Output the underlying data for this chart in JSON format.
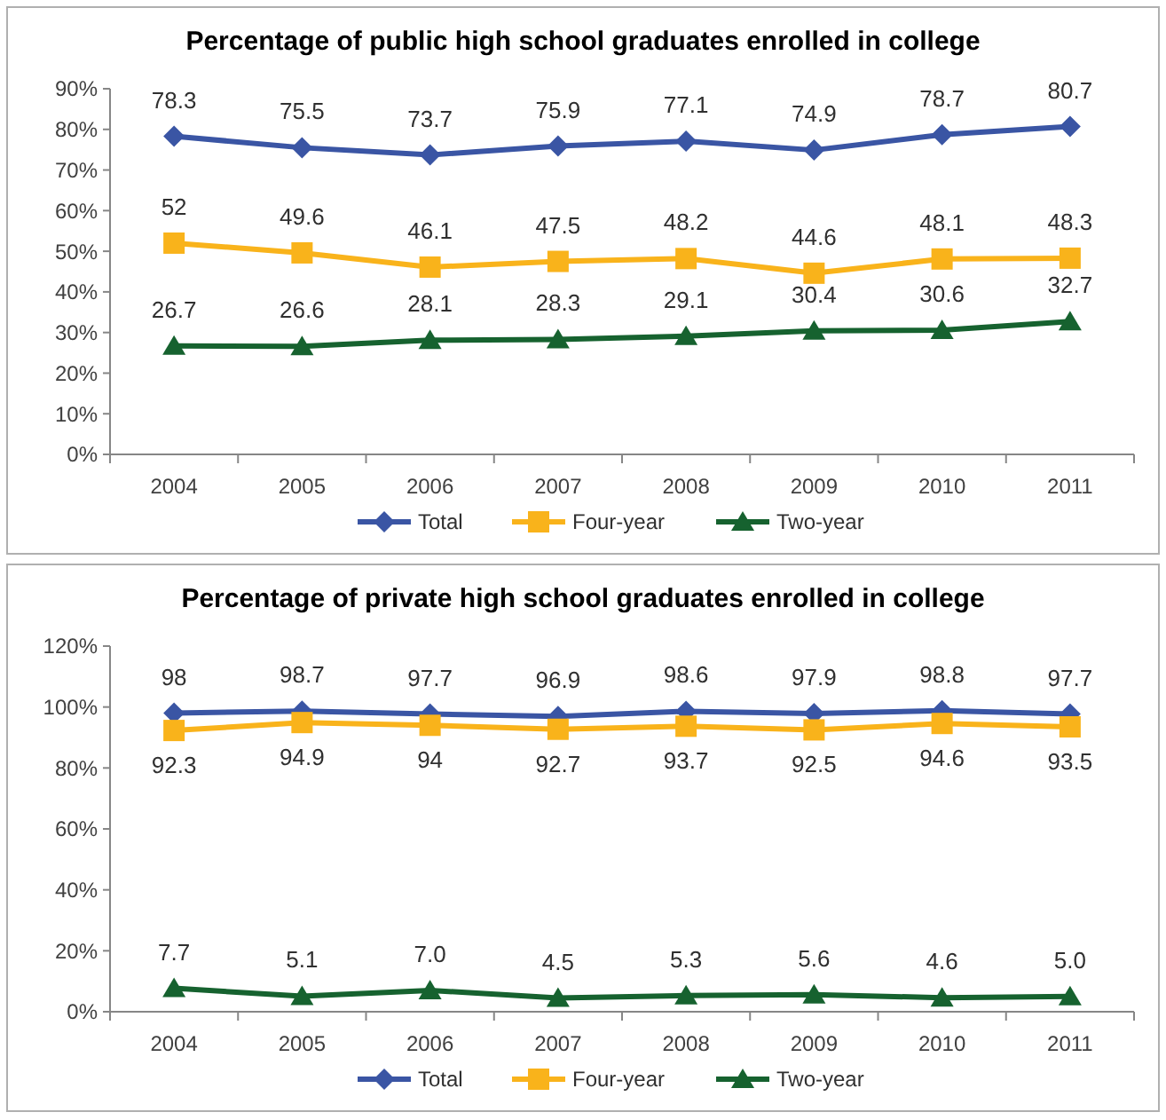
{
  "chart_data": [
    {
      "type": "line",
      "title": "Percentage of public high school graduates enrolled in college",
      "categories": [
        "2004",
        "2005",
        "2006",
        "2007",
        "2008",
        "2009",
        "2010",
        "2011"
      ],
      "ylim": [
        0,
        90
      ],
      "yticks": [
        {
          "value": 0,
          "label": "0%"
        },
        {
          "value": 10,
          "label": "10%"
        },
        {
          "value": 20,
          "label": "20%"
        },
        {
          "value": 30,
          "label": "30%"
        },
        {
          "value": 40,
          "label": "40%"
        },
        {
          "value": 50,
          "label": "50%"
        },
        {
          "value": 60,
          "label": "60%"
        },
        {
          "value": 70,
          "label": "70%"
        },
        {
          "value": 80,
          "label": "80%"
        },
        {
          "value": 90,
          "label": "90%"
        }
      ],
      "grid": false,
      "legend": "bottom",
      "series": [
        {
          "name": "Total",
          "color": "#3a55a4",
          "marker": "diamond",
          "values": [
            78.3,
            75.5,
            73.7,
            75.9,
            77.1,
            74.9,
            78.7,
            80.7
          ],
          "value_labels": [
            "78.3",
            "75.5",
            "73.7",
            "75.9",
            "77.1",
            "74.9",
            "78.7",
            "80.7"
          ]
        },
        {
          "name": "Four-year",
          "color": "#f9b31b",
          "marker": "square",
          "values": [
            52,
            49.6,
            46.1,
            47.5,
            48.2,
            44.6,
            48.1,
            48.3
          ],
          "value_labels": [
            "52",
            "49.6",
            "46.1",
            "47.5",
            "48.2",
            "44.6",
            "48.1",
            "48.3"
          ]
        },
        {
          "name": "Two-year",
          "color": "#16622f",
          "marker": "triangle",
          "values": [
            26.7,
            26.6,
            28.1,
            28.3,
            29.1,
            30.4,
            30.6,
            32.7
          ],
          "value_labels": [
            "26.7",
            "26.6",
            "28.1",
            "28.3",
            "29.1",
            "30.4",
            "30.6",
            "32.7"
          ]
        }
      ]
    },
    {
      "type": "line",
      "title": "Percentage of private high school graduates enrolled in college",
      "categories": [
        "2004",
        "2005",
        "2006",
        "2007",
        "2008",
        "2009",
        "2010",
        "2011"
      ],
      "ylim": [
        0,
        120
      ],
      "yticks": [
        {
          "value": 0,
          "label": "0%"
        },
        {
          "value": 20,
          "label": "20%"
        },
        {
          "value": 40,
          "label": "40%"
        },
        {
          "value": 60,
          "label": "60%"
        },
        {
          "value": 80,
          "label": "80%"
        },
        {
          "value": 100,
          "label": "100%"
        },
        {
          "value": 120,
          "label": "120%"
        }
      ],
      "grid": false,
      "legend": "bottom",
      "series": [
        {
          "name": "Total",
          "color": "#3a55a4",
          "marker": "diamond",
          "values": [
            98,
            98.7,
            97.7,
            96.9,
            98.6,
            97.9,
            98.8,
            97.7
          ],
          "value_labels": [
            "98",
            "98.7",
            "97.7",
            "96.9",
            "98.6",
            "97.9",
            "98.8",
            "97.7"
          ]
        },
        {
          "name": "Four-year",
          "color": "#f9b31b",
          "marker": "square",
          "values": [
            92.3,
            94.9,
            94,
            92.7,
            93.7,
            92.5,
            94.6,
            93.5
          ],
          "value_labels": [
            "92.3",
            "94.9",
            "94",
            "92.7",
            "93.7",
            "92.5",
            "94.6",
            "93.5"
          ]
        },
        {
          "name": "Two-year",
          "color": "#16622f",
          "marker": "triangle",
          "values": [
            7.7,
            5.1,
            7.0,
            4.5,
            5.3,
            5.6,
            4.6,
            5.0
          ],
          "value_labels": [
            "7.7",
            "5.1",
            "7.0",
            "4.5",
            "5.3",
            "5.6",
            "4.6",
            "5.0"
          ]
        }
      ]
    }
  ]
}
